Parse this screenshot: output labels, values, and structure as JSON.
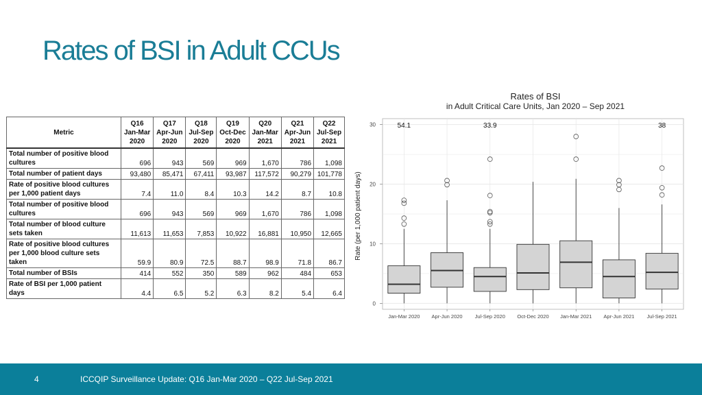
{
  "slide": {
    "title": "Rates of BSI in Adult CCUs"
  },
  "table": {
    "header_metric": "Metric",
    "columns": [
      {
        "q": "Q16",
        "months": "Jan-Mar",
        "year": "2020"
      },
      {
        "q": "Q17",
        "months": "Apr-Jun",
        "year": "2020"
      },
      {
        "q": "Q18",
        "months": "Jul-Sep",
        "year": "2020"
      },
      {
        "q": "Q19",
        "months": "Oct-Dec",
        "year": "2020"
      },
      {
        "q": "Q20",
        "months": "Jan-Mar",
        "year": "2021"
      },
      {
        "q": "Q21",
        "months": "Apr-Jun",
        "year": "2021"
      },
      {
        "q": "Q22",
        "months": "Jul-Sep",
        "year": "2021"
      }
    ],
    "rows": [
      {
        "label": "Total number of positive blood cultures",
        "values": [
          "696",
          "943",
          "569",
          "969",
          "1,670",
          "786",
          "1,098"
        ]
      },
      {
        "label": "Total number of patient days",
        "values": [
          "93,480",
          "85,471",
          "67,411",
          "93,987",
          "117,572",
          "90,279",
          "101,778"
        ]
      },
      {
        "label": "Rate of positive blood cultures per 1,000 patient days",
        "values": [
          "7.4",
          "11.0",
          "8.4",
          "10.3",
          "14.2",
          "8.7",
          "10.8"
        ]
      },
      {
        "label": "Total number of positive blood cultures",
        "values": [
          "696",
          "943",
          "569",
          "969",
          "1,670",
          "786",
          "1,098"
        ]
      },
      {
        "label": "Total number of blood culture sets taken",
        "values": [
          "11,613",
          "11,653",
          "7,853",
          "10,922",
          "16,881",
          "10,950",
          "12,665"
        ]
      },
      {
        "label": "Rate of positive blood cultures per 1,000 blood culture sets taken",
        "values": [
          "59.9",
          "80.9",
          "72.5",
          "88.7",
          "98.9",
          "71.8",
          "86.7"
        ]
      },
      {
        "label": "Total number of BSIs",
        "values": [
          "414",
          "552",
          "350",
          "589",
          "962",
          "484",
          "653"
        ]
      },
      {
        "label": "Rate of BSI per 1,000 patient days",
        "values": [
          "4.4",
          "6.5",
          "5.2",
          "6.3",
          "8.2",
          "5.4",
          "6.4"
        ]
      }
    ]
  },
  "chart_data": {
    "type": "boxplot",
    "title": "Rates of BSI",
    "subtitle": "in Adult Critical Care Units, Jan 2020 – Sep 2021",
    "ylabel": "Rate (per 1,000 patient days)",
    "xlabel": "",
    "ylim": [
      -1,
      31
    ],
    "yticks": [
      0,
      10,
      20,
      30
    ],
    "grid": true,
    "categories": [
      "Jan-Mar 2020",
      "Apr-Jun 2020",
      "Jul-Sep 2020",
      "Oct-Dec 2020",
      "Jan-Mar 2021",
      "Apr-Jun 2021",
      "Jul-Sep 2021"
    ],
    "boxes": [
      {
        "whisker_low": 0,
        "q1": 1.7,
        "median": 3.2,
        "q3": 6.3,
        "whisker_high": 12.5,
        "outliers": [
          13.3,
          14.3,
          16.8,
          17.3
        ]
      },
      {
        "whisker_low": 0,
        "q1": 2.7,
        "median": 5.5,
        "q3": 8.5,
        "whisker_high": 17.3,
        "outliers": [
          19.9,
          20.6
        ]
      },
      {
        "whisker_low": 0,
        "q1": 2.0,
        "median": 4.5,
        "q3": 6.0,
        "whisker_high": 12.5,
        "outliers": [
          13.3,
          13.7,
          15.2,
          15.4,
          18.1,
          24.2
        ]
      },
      {
        "whisker_low": 0,
        "q1": 2.3,
        "median": 5.1,
        "q3": 9.9,
        "whisker_high": 20.4,
        "outliers": []
      },
      {
        "whisker_low": 0,
        "q1": 2.6,
        "median": 6.9,
        "q3": 10.5,
        "whisker_high": 20.9,
        "outliers": [
          24.2,
          28.0
        ]
      },
      {
        "whisker_low": 0,
        "q1": 0.9,
        "median": 4.5,
        "q3": 7.3,
        "whisker_high": 16.0,
        "outliers": [
          19.1,
          19.9,
          20.6
        ]
      },
      {
        "whisker_low": 0,
        "q1": 2.4,
        "median": 5.2,
        "q3": 8.4,
        "whisker_high": 16.6,
        "outliers": [
          18.2,
          19.4,
          22.7
        ]
      }
    ],
    "annotations": [
      {
        "text": "54.1",
        "category_index": 0
      },
      {
        "text": "33.9",
        "category_index": 2
      },
      {
        "text": "38",
        "category_index": 6
      }
    ],
    "colors": {
      "box_fill": "#d4d4d4",
      "box_stroke": "#333333",
      "grid": "#e6e6e6"
    }
  },
  "footer": {
    "page_number": "4",
    "text": "ICCQIP Surveillance Update: Q16 Jan-Mar 2020 – Q22 Jul-Sep 2021",
    "color": "#0b7f9a"
  }
}
